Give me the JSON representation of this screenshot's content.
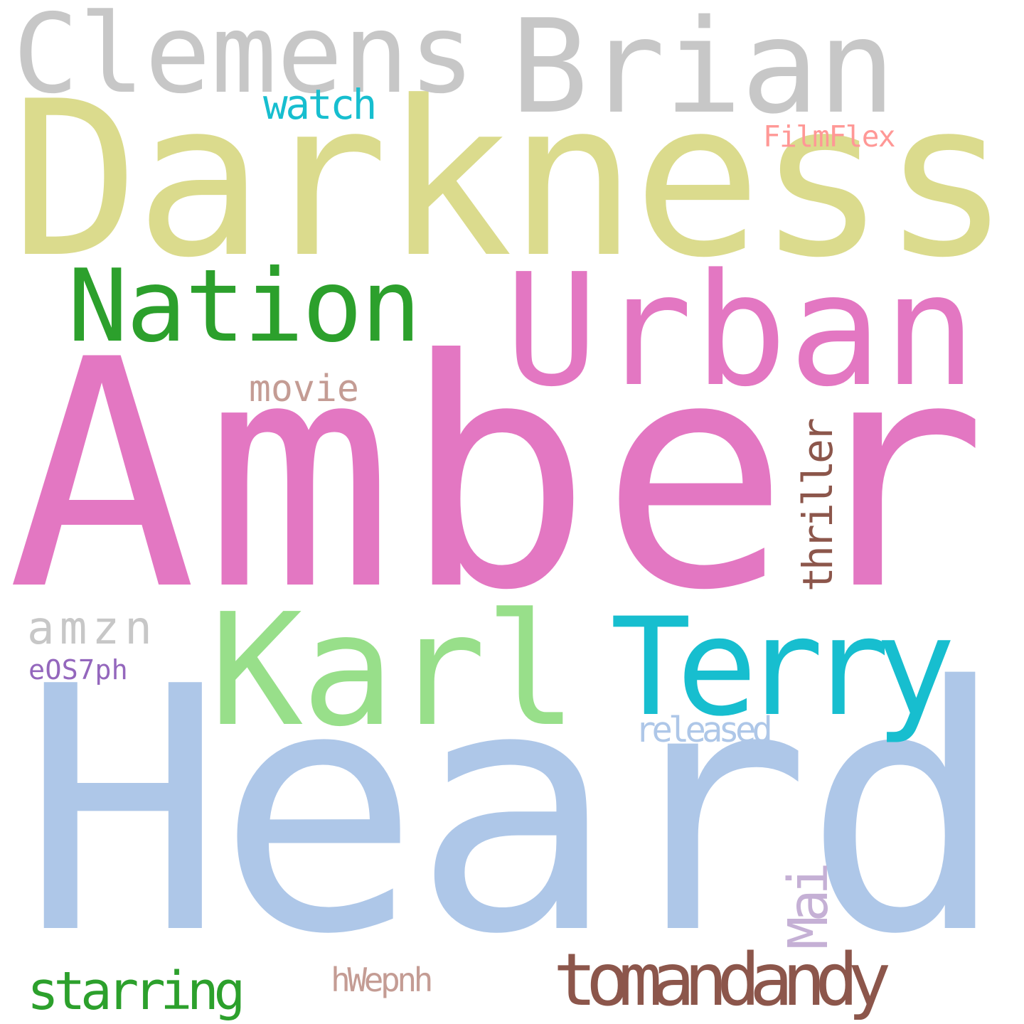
{
  "words": [
    {
      "key": "amber",
      "text": "Amber",
      "color": "#e377c2"
    },
    {
      "key": "heard",
      "text": "Heard",
      "color": "#aec7e8"
    },
    {
      "key": "darkness",
      "text": "Darkness",
      "color": "#dbdb8d"
    },
    {
      "key": "brian",
      "text": "Brian",
      "color": "#c7c7c7"
    },
    {
      "key": "clemens",
      "text": "Clemens",
      "color": "#c7c7c7"
    },
    {
      "key": "urban",
      "text": "Urban",
      "color": "#e377c2"
    },
    {
      "key": "nation",
      "text": "Nation",
      "color": "#2ca02c"
    },
    {
      "key": "karl",
      "text": "Karl",
      "color": "#98df8a"
    },
    {
      "key": "terry",
      "text": "Terry",
      "color": "#17becf"
    },
    {
      "key": "tomandandy",
      "text": "tomandandy",
      "color": "#8c564b"
    },
    {
      "key": "thriller",
      "text": "thriller",
      "color": "#8c564b"
    },
    {
      "key": "mai",
      "text": "Mai",
      "color": "#c5b0d5"
    },
    {
      "key": "amzn",
      "text": "amzn",
      "color": "#c7c7c7"
    },
    {
      "key": "starring",
      "text": "starring",
      "color": "#2ca02c"
    },
    {
      "key": "watch",
      "text": "watch",
      "color": "#17becf"
    },
    {
      "key": "movie",
      "text": "movie",
      "color": "#c49c94"
    },
    {
      "key": "filmflex",
      "text": "FilmFlex",
      "color": "#ff9896"
    },
    {
      "key": "released",
      "text": "released",
      "color": "#aec7e8"
    },
    {
      "key": "eos7ph",
      "text": "eOS7ph",
      "color": "#9467bd"
    },
    {
      "key": "hwepnh",
      "text": "hWepnh",
      "color": "#c49c94"
    }
  ]
}
